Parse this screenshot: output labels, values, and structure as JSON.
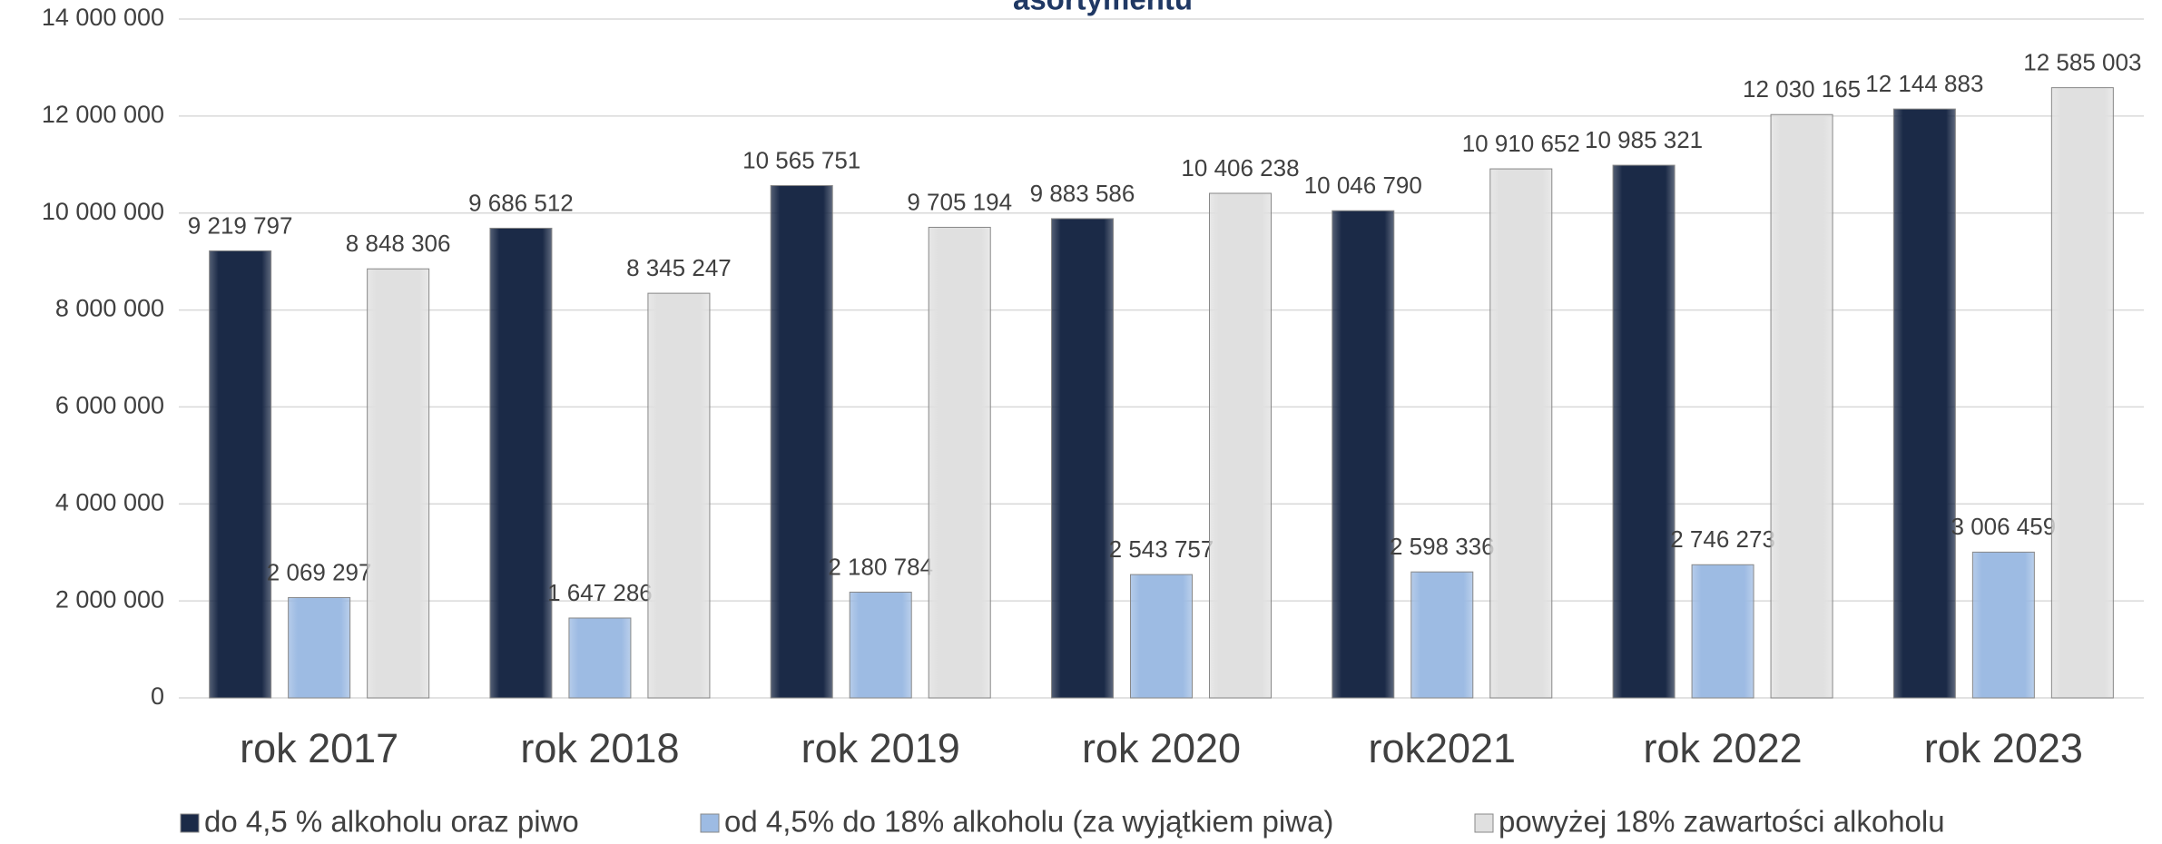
{
  "chart_data": {
    "type": "bar",
    "title": "asortymentu",
    "categories": [
      "rok 2017",
      "rok 2018",
      "rok 2019",
      "rok 2020",
      "rok2021",
      "rok 2022",
      "rok 2023"
    ],
    "series": [
      {
        "name": "do 4,5 % alkoholu oraz piwo",
        "color": "#1b2a47",
        "values": [
          9219797,
          9686512,
          10565751,
          9883586,
          10046790,
          10985321,
          12144883
        ],
        "value_labels": [
          "9 219 797",
          "9 686 512",
          "10 565 751",
          "9 883 586",
          "10 046 790",
          "10 985 321",
          "12 144 883"
        ]
      },
      {
        "name": "od 4,5% do 18% alkoholu (za wyjątkiem piwa)",
        "color": "#9dbbe3",
        "values": [
          2069297,
          1647286,
          2180784,
          2543757,
          2598336,
          2746273,
          3006459
        ],
        "value_labels": [
          "2 069 297",
          "1 647 286",
          "2 180 784",
          "2 543 757",
          "2 598 336",
          "2 746 273",
          "3 006 459"
        ]
      },
      {
        "name": "powyżej 18% zawartości alkoholu",
        "color": "#e0e0e0",
        "values": [
          8848306,
          8345247,
          9705194,
          10406238,
          10910652,
          12030165,
          12585003
        ],
        "value_labels": [
          "8 848 306",
          "8 345 247",
          "9 705 194",
          "10 406 238",
          "10 910 652",
          "12 030 165",
          "12 585 003"
        ]
      }
    ],
    "ylim": [
      0,
      14000000
    ],
    "yticks": [
      0,
      {
        "value": 2000000,
        "label": "2 000 000"
      },
      {
        "value": 4000000,
        "label": "4 000 000"
      },
      {
        "value": 6000000,
        "label": "6 000 000"
      },
      {
        "value": 8000000,
        "label": "8 000 000"
      },
      {
        "value": 10000000,
        "label": "10 000 000"
      },
      {
        "value": 12000000,
        "label": "12 000 000"
      },
      {
        "value": 14000000,
        "label": "14 000 000"
      }
    ],
    "grid": true,
    "legend": "bottom"
  }
}
